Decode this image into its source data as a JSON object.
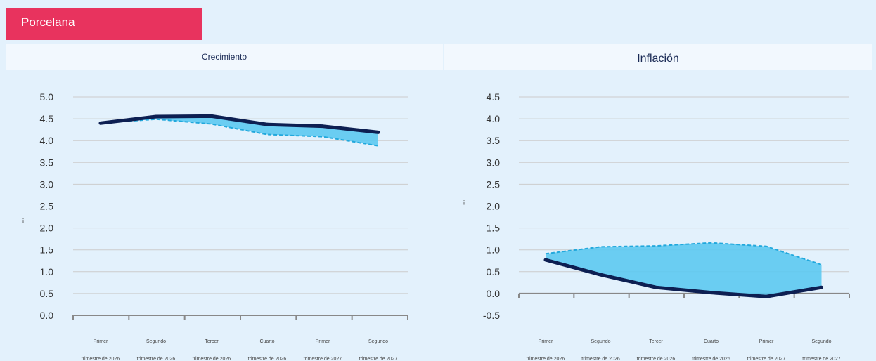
{
  "header": {
    "country_tag": "Porcelana"
  },
  "colors": {
    "tag": "#e8335e",
    "primary_line": "#0d1f52",
    "dashed_line": "#22a8dc",
    "fill": "#5cc9f1",
    "grid": "#cccccc",
    "axis": "#888888"
  },
  "chart_data": [
    {
      "type": "line",
      "title": "Crecimiento",
      "ylabel": "¡",
      "ylim": [
        0,
        5
      ],
      "y_ticks": [
        "5.0",
        "4.5",
        "4.0",
        "3.5",
        "3.0",
        "2.5",
        "2.0",
        "1.5",
        "1.0",
        "0.5",
        "0.0"
      ],
      "categories": [
        {
          "line1": "Primer",
          "line2": "trimestre de 2026"
        },
        {
          "line1": "Segundo",
          "line2": "trimestre de 2026"
        },
        {
          "line1": "Tercer",
          "line2": "trimestre de 2026"
        },
        {
          "line1": "Cuarto",
          "line2": "trimestre de 2026"
        },
        {
          "line1": "Primer",
          "line2": "trimestre de 2027"
        },
        {
          "line1": "Segundo",
          "line2": "trimestre de 2027"
        }
      ],
      "series": [
        {
          "style": "solid",
          "values": [
            4.4,
            4.55,
            4.56,
            4.37,
            4.33,
            4.19
          ]
        },
        {
          "style": "dashed",
          "values": [
            4.4,
            4.49,
            4.38,
            4.14,
            4.09,
            3.88
          ]
        }
      ],
      "grid": true
    },
    {
      "type": "line",
      "title": "Inflación",
      "ylabel": "¡",
      "ylim": [
        -0.5,
        4.5
      ],
      "y_ticks": [
        "4.5",
        "4.0",
        "3.5",
        "3.0",
        "2.5",
        "2.0",
        "1.5",
        "1.0",
        "0.5",
        "0.0",
        "-0.5"
      ],
      "categories": [
        {
          "line1": "Primer",
          "line2": "trimestre de 2026"
        },
        {
          "line1": "Segundo",
          "line2": "trimestre de 2026"
        },
        {
          "line1": "Tercer",
          "line2": "trimestre de 2026"
        },
        {
          "line1": "Cuarto",
          "line2": "trimestre de 2026"
        },
        {
          "line1": "Primer",
          "line2": "trimestre de 2027"
        },
        {
          "line1": "Segundo",
          "line2": "trimestre de 2027"
        }
      ],
      "series": [
        {
          "style": "solid",
          "values": [
            0.77,
            0.43,
            0.14,
            0.02,
            -0.07,
            0.14
          ]
        },
        {
          "style": "dashed",
          "values": [
            0.91,
            1.07,
            1.09,
            1.16,
            1.08,
            0.66
          ]
        }
      ],
      "grid": true
    }
  ]
}
